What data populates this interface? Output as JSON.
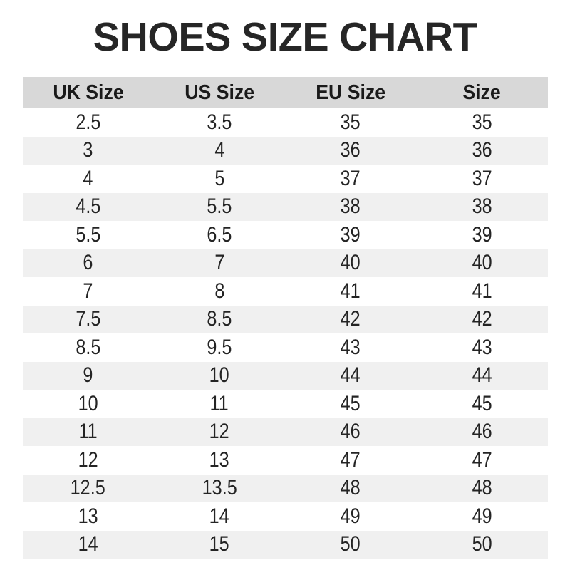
{
  "title": "SHOES SIZE CHART",
  "colors": {
    "title_color": "#262626",
    "header_bg": "#d8d8d8",
    "header_text": "#1a1a1a",
    "row_alt_bg": "#f0f0f0",
    "row_text": "#242424",
    "page_bg": "#ffffff"
  },
  "chart_data": {
    "type": "table",
    "title": "SHOES SIZE CHART",
    "columns": [
      "UK Size",
      "US Size",
      "EU Size",
      "Size"
    ],
    "rows": [
      [
        "2.5",
        "3.5",
        "35",
        "35"
      ],
      [
        "3",
        "4",
        "36",
        "36"
      ],
      [
        "4",
        "5",
        "37",
        "37"
      ],
      [
        "4.5",
        "5.5",
        "38",
        "38"
      ],
      [
        "5.5",
        "6.5",
        "39",
        "39"
      ],
      [
        "6",
        "7",
        "40",
        "40"
      ],
      [
        "7",
        "8",
        "41",
        "41"
      ],
      [
        "7.5",
        "8.5",
        "42",
        "42"
      ],
      [
        "8.5",
        "9.5",
        "43",
        "43"
      ],
      [
        "9",
        "10",
        "44",
        "44"
      ],
      [
        "10",
        "11",
        "45",
        "45"
      ],
      [
        "11",
        "12",
        "46",
        "46"
      ],
      [
        "12",
        "13",
        "47",
        "47"
      ],
      [
        "12.5",
        "13.5",
        "48",
        "48"
      ],
      [
        "13",
        "14",
        "49",
        "49"
      ],
      [
        "14",
        "15",
        "50",
        "50"
      ]
    ],
    "layout": {
      "zebra_striping": true,
      "first_row_background": "white",
      "alternate_row_background": "#f0f0f0",
      "header_background": "#d8d8d8",
      "column_alignment": "center"
    }
  }
}
